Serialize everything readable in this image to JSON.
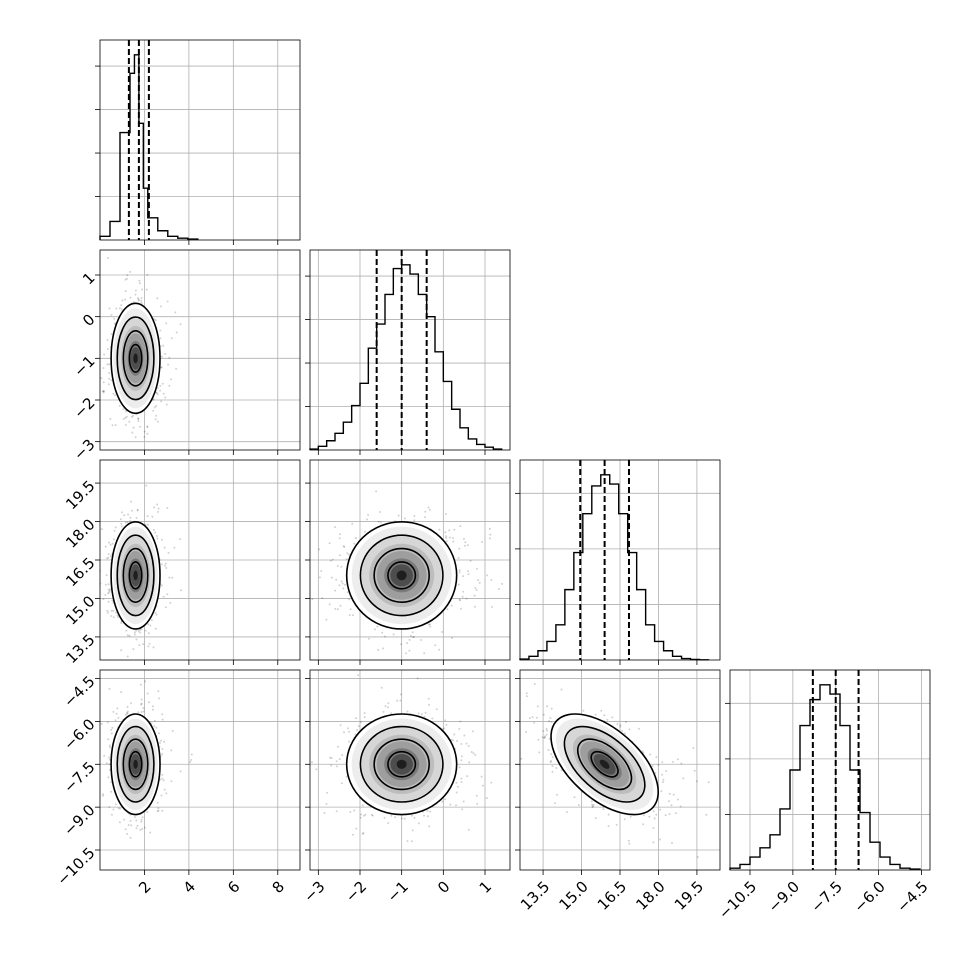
{
  "chart_data": {
    "type": "corner",
    "parameters": [
      {
        "id": "p0",
        "range": [
          0,
          9.0
        ],
        "ticks": [
          2,
          4,
          6,
          8
        ],
        "tick_labels": [
          "2",
          "4",
          "6",
          "8"
        ],
        "median": 1.75,
        "quantiles": [
          1.3,
          1.75,
          2.2
        ],
        "hist_bins": [
          0.0,
          0.45,
          0.9,
          1.35,
          1.55,
          1.75,
          1.95,
          2.15,
          2.6,
          3.05,
          3.5,
          3.95,
          4.4
        ],
        "hist_counts": [
          0.02,
          0.1,
          0.58,
          0.9,
          1.0,
          0.63,
          0.28,
          0.12,
          0.05,
          0.02,
          0.01,
          0.005
        ],
        "hist_ticks": 4,
        "mean": 1.6,
        "sd": 0.5
      },
      {
        "id": "p1",
        "range": [
          -3.2,
          1.6
        ],
        "ticks": [
          -3,
          -2,
          -1,
          0,
          1
        ],
        "tick_labels": [
          "−3",
          "−2",
          "−1",
          "0",
          "1"
        ],
        "median": -1.0,
        "quantiles": [
          -1.6,
          -1.0,
          -0.4
        ],
        "hist_bins": [
          -3.2,
          -3.0,
          -2.8,
          -2.6,
          -2.4,
          -2.2,
          -2.0,
          -1.8,
          -1.6,
          -1.4,
          -1.2,
          -1.0,
          -0.8,
          -0.6,
          -0.4,
          -0.2,
          0.0,
          0.2,
          0.4,
          0.6,
          0.8,
          1.0,
          1.2,
          1.4
        ],
        "hist_counts": [
          0.005,
          0.02,
          0.05,
          0.09,
          0.15,
          0.24,
          0.36,
          0.55,
          0.68,
          0.84,
          0.98,
          1.0,
          0.95,
          0.84,
          0.72,
          0.53,
          0.37,
          0.22,
          0.12,
          0.06,
          0.03,
          0.015,
          0.005
        ],
        "hist_ticks": 4,
        "mean": -1.0,
        "sd": 0.6
      },
      {
        "id": "p2",
        "range": [
          12.6,
          20.4
        ],
        "ticks": [
          13.5,
          15.0,
          16.5,
          18.0,
          19.5
        ],
        "tick_labels": [
          "13.5",
          "15.0",
          "16.5",
          "18.0",
          "19.5"
        ],
        "median": 15.9,
        "quantiles": [
          14.95,
          15.9,
          16.85
        ],
        "hist_bins": [
          12.6,
          12.95,
          13.3,
          13.65,
          14.0,
          14.35,
          14.7,
          15.05,
          15.4,
          15.75,
          16.1,
          16.45,
          16.8,
          17.15,
          17.5,
          17.85,
          18.2,
          18.55,
          18.9,
          19.25,
          19.6,
          19.95
        ],
        "hist_counts": [
          0.005,
          0.02,
          0.05,
          0.1,
          0.19,
          0.38,
          0.58,
          0.79,
          0.94,
          1.0,
          0.95,
          0.79,
          0.58,
          0.38,
          0.19,
          0.1,
          0.05,
          0.02,
          0.008,
          0.003,
          0.001
        ],
        "hist_ticks": 3,
        "mean": 15.9,
        "sd": 0.95
      },
      {
        "id": "p3",
        "range": [
          -11.2,
          -4.2
        ],
        "ticks": [
          -10.5,
          -9.0,
          -7.5,
          -6.0,
          -4.5
        ],
        "tick_labels": [
          "−10.5",
          "−9.0",
          "−7.5",
          "−6.0",
          "−4.5"
        ],
        "median": -7.5,
        "quantiles": [
          -8.3,
          -7.5,
          -6.7
        ],
        "hist_bins": [
          -11.2,
          -10.85,
          -10.5,
          -10.15,
          -9.8,
          -9.45,
          -9.1,
          -8.75,
          -8.4,
          -8.05,
          -7.7,
          -7.35,
          -7.0,
          -6.65,
          -6.3,
          -5.95,
          -5.6,
          -5.25,
          -4.9,
          -4.55
        ],
        "hist_counts": [
          0.01,
          0.03,
          0.07,
          0.12,
          0.19,
          0.33,
          0.54,
          0.78,
          0.92,
          1.0,
          0.95,
          0.78,
          0.54,
          0.31,
          0.15,
          0.07,
          0.03,
          0.01,
          0.005
        ],
        "hist_ticks": 3,
        "mean": -7.5,
        "sd": 0.8
      }
    ],
    "pairs": [
      {
        "x": 0,
        "y": 1,
        "corr": 0.0
      },
      {
        "x": 0,
        "y": 2,
        "corr": 0.0
      },
      {
        "x": 0,
        "y": 3,
        "corr": 0.0
      },
      {
        "x": 1,
        "y": 2,
        "corr": 0.0
      },
      {
        "x": 1,
        "y": 3,
        "corr": 0.0
      },
      {
        "x": 2,
        "y": 3,
        "corr": -0.55
      }
    ],
    "contour_levels_sigma": [
      0.5,
      1.0,
      1.5,
      2.0
    ],
    "grid": true
  }
}
